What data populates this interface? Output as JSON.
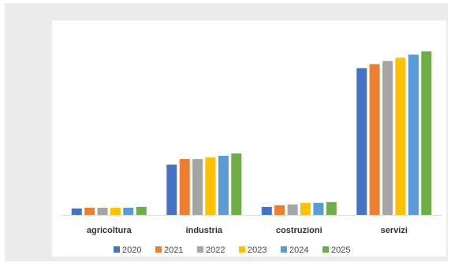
{
  "chart_data": {
    "type": "bar",
    "categories": [
      "agricoltura",
      "industria",
      "costruzioni",
      "servizi"
    ],
    "series": [
      {
        "name": "2020",
        "color": "#4472C4",
        "values": [
          8,
          63,
          10,
          184
        ]
      },
      {
        "name": "2021",
        "color": "#ED7D31",
        "values": [
          9,
          70,
          12,
          189
        ]
      },
      {
        "name": "2022",
        "color": "#A5A5A5",
        "values": [
          9,
          70,
          13,
          193
        ]
      },
      {
        "name": "2023",
        "color": "#FFC000",
        "values": [
          9,
          72,
          15,
          197
        ]
      },
      {
        "name": "2024",
        "color": "#5B9BD5",
        "values": [
          9,
          74,
          15,
          201
        ]
      },
      {
        "name": "2025",
        "color": "#70AD47",
        "values": [
          10,
          77,
          16,
          205
        ]
      }
    ],
    "ylim": [
      0,
      230
    ],
    "grid": false,
    "legend": "bottom",
    "title": "",
    "xlabel": "",
    "ylabel": ""
  }
}
